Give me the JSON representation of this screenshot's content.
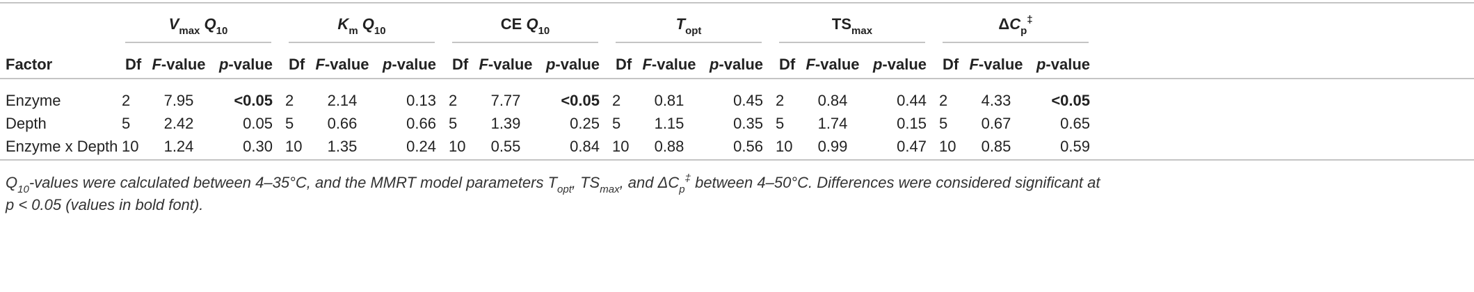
{
  "table": {
    "groups": [
      [
        {
          "text": "V",
          "italic": true
        },
        {
          "text": "max",
          "sub": true
        },
        {
          "text": " Q",
          "italic": true
        },
        {
          "text": "10",
          "sub": true
        }
      ],
      [
        {
          "text": "K",
          "italic": true
        },
        {
          "text": "m",
          "sub": true
        },
        {
          "text": " Q",
          "italic": true
        },
        {
          "text": "10",
          "sub": true
        }
      ],
      [
        {
          "text": "CE "
        },
        {
          "text": "Q",
          "italic": true
        },
        {
          "text": "10",
          "sub": true
        }
      ],
      [
        {
          "text": "T",
          "italic": true
        },
        {
          "text": "opt",
          "sub": true
        }
      ],
      [
        {
          "text": "TS"
        },
        {
          "text": "max",
          "sub": true
        }
      ],
      [
        {
          "text": "Δ"
        },
        {
          "text": "C",
          "italic": true
        },
        {
          "text": "p",
          "sub": true
        },
        {
          "text": "‡",
          "sup": true
        }
      ]
    ],
    "column_headers": [
      [
        {
          "text": "Factor"
        }
      ],
      [
        {
          "text": "Df"
        }
      ],
      [
        {
          "text": "F",
          "italic": true
        },
        {
          "text": "-value"
        }
      ],
      [
        {
          "text": "p",
          "italic": true
        },
        {
          "text": "-value"
        }
      ],
      [
        {
          "text": "Df"
        }
      ],
      [
        {
          "text": "F",
          "italic": true
        },
        {
          "text": "-value"
        }
      ],
      [
        {
          "text": "p",
          "italic": true
        },
        {
          "text": "-value"
        }
      ],
      [
        {
          "text": "Df"
        }
      ],
      [
        {
          "text": "F",
          "italic": true
        },
        {
          "text": "-value"
        }
      ],
      [
        {
          "text": "p",
          "italic": true
        },
        {
          "text": "-value"
        }
      ],
      [
        {
          "text": "Df"
        }
      ],
      [
        {
          "text": "F",
          "italic": true
        },
        {
          "text": "-value"
        }
      ],
      [
        {
          "text": "p",
          "italic": true
        },
        {
          "text": "-value"
        }
      ],
      [
        {
          "text": "Df"
        }
      ],
      [
        {
          "text": "F",
          "italic": true
        },
        {
          "text": "-value"
        }
      ],
      [
        {
          "text": "p",
          "italic": true
        },
        {
          "text": "-value"
        }
      ],
      [
        {
          "text": "Df"
        }
      ],
      [
        {
          "text": "F",
          "italic": true
        },
        {
          "text": "-value"
        }
      ],
      [
        {
          "text": "p",
          "italic": true
        },
        {
          "text": "-value"
        }
      ]
    ],
    "rows": [
      {
        "cells": [
          "Enzyme",
          "2",
          "7.95",
          {
            "text": "<0.05",
            "bold": true
          },
          "2",
          "2.14",
          "0.13",
          "2",
          "7.77",
          {
            "text": "<0.05",
            "bold": true
          },
          "2",
          "0.81",
          "0.45",
          "2",
          "0.84",
          "0.44",
          "2",
          "4.33",
          {
            "text": "<0.05",
            "bold": true
          }
        ]
      },
      {
        "cells": [
          "Depth",
          "5",
          "2.42",
          "0.05",
          "5",
          "0.66",
          "0.66",
          "5",
          "1.39",
          "0.25",
          "5",
          "1.15",
          "0.35",
          "5",
          "1.74",
          "0.15",
          "5",
          "0.67",
          "0.65"
        ]
      },
      {
        "cells": [
          "Enzyme x Depth",
          "10",
          "1.24",
          "0.30",
          "10",
          "1.35",
          "0.24",
          "10",
          "0.55",
          "0.84",
          "10",
          "0.88",
          "0.56",
          "10",
          "0.99",
          "0.47",
          "10",
          "0.85",
          "0.59"
        ]
      }
    ],
    "footnote": [
      [
        {
          "text": "Q"
        },
        {
          "text": "10",
          "sub": true
        },
        {
          "text": "-values were calculated between 4–35°C, and the MMRT model parameters T"
        },
        {
          "text": "opt",
          "sub": true
        },
        {
          "text": ", TS"
        },
        {
          "text": "max",
          "sub": true
        },
        {
          "text": ", and ΔC"
        },
        {
          "text": "p",
          "sub": true
        },
        {
          "text": "‡",
          "sup": true
        },
        {
          "text": " between 4–50°C. Differences were considered significant at"
        }
      ],
      [
        {
          "text": "p < 0.05 (values in bold font)."
        }
      ]
    ]
  }
}
